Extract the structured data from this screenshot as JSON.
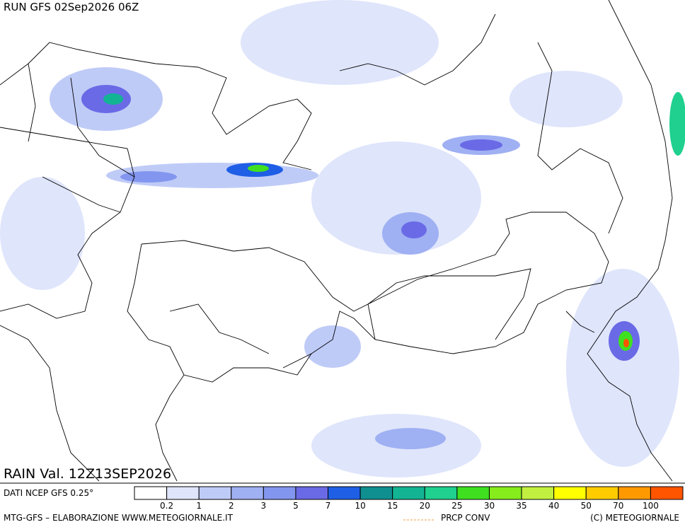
{
  "header": {
    "run": "RUN GFS 02Sep2026 06Z",
    "valid": "RAIN Val. 12Z13SEP2026"
  },
  "legend": {
    "source": "DATI NCEP GFS 0.25°",
    "levels": [
      0.2,
      1,
      2,
      3,
      5,
      7,
      10,
      15,
      20,
      25,
      30,
      35,
      40,
      50,
      70,
      100
    ],
    "colors": [
      "#ffffff",
      "#dfe5fb",
      "#bfcbf7",
      "#9fb0f3",
      "#8396ef",
      "#6a6ae6",
      "#1f5fe6",
      "#0f8f8f",
      "#12b493",
      "#1fd08f",
      "#3fe020",
      "#86ec1c",
      "#c2f040",
      "#ffff00",
      "#ffcc00",
      "#ff9900",
      "#ff5500"
    ]
  },
  "footer": {
    "credit": "MTG-GFS – ELABORAZIONE WWW.METEOGIORNALE.IT",
    "conv": "PRCP CONV",
    "copyright": "(C) METEOGIORNALE"
  }
}
